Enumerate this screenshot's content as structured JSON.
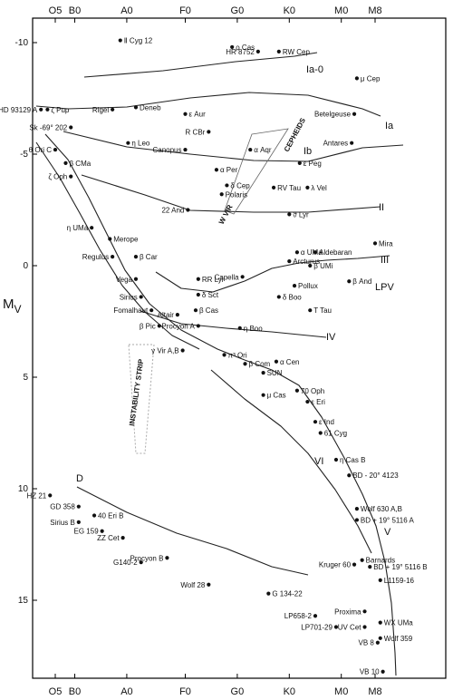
{
  "chart_data": {
    "type": "scatter",
    "title": "",
    "xlabel": "",
    "ylabel": "M_V",
    "ylabel_main": "M",
    "ylabel_sub": "V",
    "ylim": [
      -11,
      19
    ],
    "y_ticks": [
      -10,
      -5,
      0,
      5,
      10,
      15
    ],
    "x_categories": [
      "O5",
      "B0",
      "A0",
      "F0",
      "G0",
      "K0",
      "M0",
      "M8"
    ],
    "x_category_pos": [
      0.0,
      0.75,
      2.75,
      5.0,
      7.0,
      9.0,
      11.0,
      12.3
    ],
    "grid": false,
    "stars": [
      {
        "name": "HD 93129 A",
        "x": -0.55,
        "y": -7.0
      },
      {
        "name": "ζ Pup",
        "x": -0.3,
        "y": -7.0
      },
      {
        "name": "θ Ori C",
        "x": 0.0,
        "y": -5.2
      },
      {
        "name": "ζ Oph",
        "x": 0.6,
        "y": -4.0
      },
      {
        "name": "Ⅱ Cyg 12",
        "x": 2.5,
        "y": -10.1
      },
      {
        "name": "ρ Cas",
        "x": 6.8,
        "y": -9.8
      },
      {
        "name": "RW Cep",
        "x": 8.6,
        "y": -9.6
      },
      {
        "name": "HR 8752",
        "x": 7.8,
        "y": -9.6
      },
      {
        "name": "μ Cep",
        "x": 11.6,
        "y": -8.4
      },
      {
        "name": "Rigel",
        "x": 2.2,
        "y": -7.0
      },
      {
        "name": "Deneb",
        "x": 3.1,
        "y": -7.1
      },
      {
        "name": "ε Aur",
        "x": 5.0,
        "y": -6.8
      },
      {
        "name": "R CBr",
        "x": 5.9,
        "y": -6.0
      },
      {
        "name": "Betelgeuse",
        "x": 11.5,
        "y": -6.8
      },
      {
        "name": "Sk -69° 202",
        "x": 0.6,
        "y": -6.2
      },
      {
        "name": "η Leo",
        "x": 2.8,
        "y": -5.5
      },
      {
        "name": "Canopus",
        "x": 5.0,
        "y": -5.2
      },
      {
        "name": "Antares",
        "x": 11.4,
        "y": -5.5
      },
      {
        "name": "α Aqr",
        "x": 7.5,
        "y": -5.2
      },
      {
        "name": "ε Peg",
        "x": 9.4,
        "y": -4.6
      },
      {
        "name": "α Per",
        "x": 6.2,
        "y": -4.3
      },
      {
        "name": "δ Cep",
        "x": 6.6,
        "y": -3.6
      },
      {
        "name": "Polaris",
        "x": 6.4,
        "y": -3.2
      },
      {
        "name": "RV Tau",
        "x": 8.4,
        "y": -3.5
      },
      {
        "name": "λ Vel",
        "x": 9.7,
        "y": -3.5
      },
      {
        "name": "β CMa",
        "x": 0.4,
        "y": -4.6
      },
      {
        "name": "22 And",
        "x": 5.1,
        "y": -2.5
      },
      {
        "name": "ϑ Lyr",
        "x": 9.0,
        "y": -2.3
      },
      {
        "name": "η UMa",
        "x": 1.4,
        "y": -1.7
      },
      {
        "name": "Merope",
        "x": 2.1,
        "y": -1.2
      },
      {
        "name": "β Car",
        "x": 3.1,
        "y": -0.4
      },
      {
        "name": "Regulus",
        "x": 2.2,
        "y": -0.4
      },
      {
        "name": "Vega",
        "x": 3.1,
        "y": 0.6
      },
      {
        "name": "Sirius",
        "x": 3.3,
        "y": 1.4
      },
      {
        "name": "Fomalhaut",
        "x": 3.7,
        "y": 2.0
      },
      {
        "name": "β Pic",
        "x": 4.0,
        "y": 2.7
      },
      {
        "name": "Altair",
        "x": 4.7,
        "y": 2.2
      },
      {
        "name": "Mira",
        "x": 12.3,
        "y": -1.0
      },
      {
        "name": "Aldebaran",
        "x": 10.0,
        "y": -0.6
      },
      {
        "name": "α UMa",
        "x": 9.3,
        "y": -0.6
      },
      {
        "name": "Arcturus",
        "x": 9.0,
        "y": -0.2
      },
      {
        "name": "β UMi",
        "x": 9.8,
        "y": 0.0
      },
      {
        "name": "Capella",
        "x": 7.2,
        "y": 0.5
      },
      {
        "name": "RR Lyr",
        "x": 5.5,
        "y": 0.6
      },
      {
        "name": "δ Sct",
        "x": 5.5,
        "y": 1.3
      },
      {
        "name": "Pollux",
        "x": 9.2,
        "y": 0.9
      },
      {
        "name": "β And",
        "x": 11.3,
        "y": 0.7
      },
      {
        "name": "δ Boo",
        "x": 8.6,
        "y": 1.4
      },
      {
        "name": "T Tau",
        "x": 9.8,
        "y": 2.0
      },
      {
        "name": "β Cas",
        "x": 5.4,
        "y": 2.0
      },
      {
        "name": "Procyon A",
        "x": 5.5,
        "y": 2.7
      },
      {
        "name": "η Boo",
        "x": 7.1,
        "y": 2.8
      },
      {
        "name": "γ Vir A,B",
        "x": 4.9,
        "y": 3.8
      },
      {
        "name": "π³ Ori",
        "x": 6.5,
        "y": 4.0
      },
      {
        "name": "α Cen",
        "x": 8.5,
        "y": 4.3
      },
      {
        "name": "SUN",
        "x": 8.0,
        "y": 4.8
      },
      {
        "name": "β Com",
        "x": 7.3,
        "y": 4.4
      },
      {
        "name": "μ Cas",
        "x": 8.0,
        "y": 5.8
      },
      {
        "name": "70 Oph",
        "x": 9.3,
        "y": 5.6
      },
      {
        "name": "ε Eri",
        "x": 9.7,
        "y": 6.1
      },
      {
        "name": "ε Ind",
        "x": 10.0,
        "y": 7.0
      },
      {
        "name": "61 Cyg",
        "x": 10.2,
        "y": 7.5
      },
      {
        "name": "η Cas B",
        "x": 10.8,
        "y": 8.7
      },
      {
        "name": "BD - 20° 4123",
        "x": 11.3,
        "y": 9.4
      },
      {
        "name": "HZ 21",
        "x": -0.2,
        "y": 10.3
      },
      {
        "name": "GD 358",
        "x": 0.9,
        "y": 10.8
      },
      {
        "name": "Sirius B",
        "x": 0.9,
        "y": 11.5
      },
      {
        "name": "40 Eri B",
        "x": 1.5,
        "y": 11.2
      },
      {
        "name": "EG 159",
        "x": 1.8,
        "y": 11.9
      },
      {
        "name": "ZZ Cet",
        "x": 2.6,
        "y": 12.2
      },
      {
        "name": "Procyon B",
        "x": 4.3,
        "y": 13.1
      },
      {
        "name": "G140-2",
        "x": 3.3,
        "y": 13.3
      },
      {
        "name": "Wolf 28",
        "x": 5.9,
        "y": 14.3
      },
      {
        "name": "G 134-22",
        "x": 8.2,
        "y": 14.7
      },
      {
        "name": "LP658-2",
        "x": 10.0,
        "y": 15.7
      },
      {
        "name": "LP701-29",
        "x": 10.8,
        "y": 16.2
      },
      {
        "name": "Wolf 630 A,B",
        "x": 11.6,
        "y": 10.9
      },
      {
        "name": "BD + 19° 5116 A",
        "x": 11.6,
        "y": 11.4
      },
      {
        "name": "Kruger 60",
        "x": 11.5,
        "y": 13.4
      },
      {
        "name": "Barnards",
        "x": 11.8,
        "y": 13.2
      },
      {
        "name": "BD + 19° 5116 B",
        "x": 12.1,
        "y": 13.5
      },
      {
        "name": "L1159-16",
        "x": 12.5,
        "y": 14.1
      },
      {
        "name": "Proxima",
        "x": 11.9,
        "y": 15.5
      },
      {
        "name": "WX UMa",
        "x": 12.5,
        "y": 16.0
      },
      {
        "name": "UV Cet",
        "x": 11.9,
        "y": 16.2
      },
      {
        "name": "Wolf 359",
        "x": 12.5,
        "y": 16.7
      },
      {
        "name": "VB 8",
        "x": 12.4,
        "y": 16.9
      },
      {
        "name": "VB 10",
        "x": 12.6,
        "y": 18.2
      }
    ],
    "sequence_labels": [
      "Ia-0",
      "Ia",
      "Ib",
      "II",
      "III",
      "IV",
      "V",
      "VI",
      "D",
      "LPV"
    ],
    "region_labels": [
      "CEPHEIDS",
      "W VIR",
      "INSTABILITY STRIP"
    ]
  }
}
